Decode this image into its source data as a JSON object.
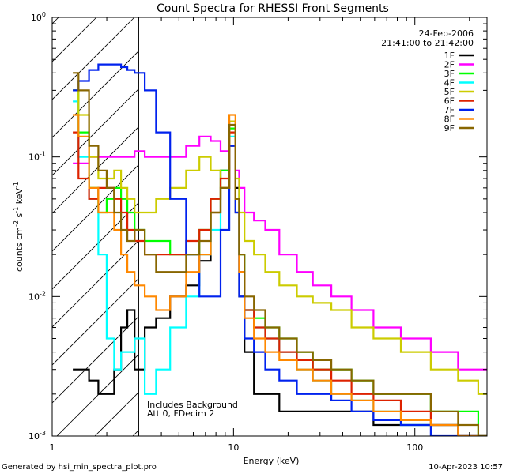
{
  "chart_data": {
    "type": "line",
    "title": "Count Spectra for RHESSI Front Segments",
    "xlabel": "Energy (keV)",
    "ylabel": "counts cm",
    "ylabel_parts": [
      "counts cm",
      "-2",
      " s",
      "-1",
      " keV",
      "-1"
    ],
    "x_scale": "log",
    "y_scale": "log",
    "xlim": [
      1,
      250
    ],
    "ylim": [
      0.001,
      1
    ],
    "x_ticks": [
      {
        "value": 1,
        "label": "1"
      },
      {
        "value": 10,
        "label": "10"
      },
      {
        "value": 100,
        "label": "100"
      }
    ],
    "y_ticks": [
      {
        "value": 1,
        "base": "10",
        "exp": "0"
      },
      {
        "value": 0.1,
        "base": "10",
        "exp": "-1"
      },
      {
        "value": 0.01,
        "base": "10",
        "exp": "-2"
      },
      {
        "value": 0.001,
        "base": "10",
        "exp": "-3"
      }
    ],
    "shaded_region": {
      "x_start": 1,
      "x_end": 3,
      "style": "diagonal-hatch"
    },
    "date": "24-Feb-2006",
    "time_range": "21:41:00 to 21:42:00",
    "annotations": [
      "Includes Background",
      "Att 0, FDecim 2"
    ],
    "footer_left": "Generated by hsi_min_spectra_plot.pro",
    "footer_right": "10-Apr-2023 10:57",
    "series": [
      {
        "name": "1F",
        "color": "#000000",
        "x": [
          1.3,
          1.5,
          1.7,
          1.9,
          2.1,
          2.3,
          2.5,
          2.7,
          3,
          3.5,
          4,
          5,
          6,
          7,
          8,
          9,
          10,
          10.5,
          11,
          12,
          14,
          16,
          20,
          25,
          30,
          40,
          50,
          70,
          100,
          150,
          200,
          250
        ],
        "values": [
          0.003,
          0.003,
          0.0025,
          0.002,
          0.002,
          0.003,
          0.006,
          0.008,
          0.003,
          0.006,
          0.007,
          0.01,
          0.012,
          0.018,
          0.04,
          0.08,
          0.12,
          0.06,
          0.01,
          0.004,
          0.002,
          0.002,
          0.0015,
          0.0015,
          0.0015,
          0.0015,
          0.0015,
          0.0012,
          0.0012,
          0.0012,
          0.001,
          0.001
        ]
      },
      {
        "name": "2F",
        "color": "#ff00ff",
        "x": [
          1.3,
          1.5,
          1.7,
          1.9,
          2.1,
          2.3,
          2.5,
          2.7,
          3,
          3.5,
          4,
          5,
          6,
          7,
          8,
          9,
          10,
          10.5,
          11,
          12,
          14,
          16,
          20,
          25,
          30,
          40,
          50,
          70,
          100,
          150,
          200,
          250
        ],
        "values": [
          0.09,
          0.09,
          0.1,
          0.1,
          0.1,
          0.1,
          0.1,
          0.1,
          0.11,
          0.1,
          0.1,
          0.1,
          0.12,
          0.14,
          0.13,
          0.11,
          0.18,
          0.08,
          0.06,
          0.04,
          0.035,
          0.03,
          0.02,
          0.015,
          0.012,
          0.01,
          0.008,
          0.006,
          0.005,
          0.004,
          0.003,
          0.003
        ]
      },
      {
        "name": "3F",
        "color": "#00ff00",
        "x": [
          1.3,
          1.5,
          1.7,
          1.9,
          2.1,
          2.3,
          2.5,
          2.7,
          3,
          3.5,
          4,
          5,
          6,
          7,
          8,
          9,
          10,
          10.5,
          11,
          12,
          14,
          16,
          20,
          25,
          30,
          40,
          50,
          70,
          100,
          150,
          200,
          250
        ],
        "values": [
          0.3,
          0.15,
          0.06,
          0.04,
          0.05,
          0.06,
          0.05,
          0.04,
          0.03,
          0.025,
          0.025,
          0.02,
          0.02,
          0.03,
          0.05,
          0.08,
          0.16,
          0.05,
          0.02,
          0.008,
          0.007,
          0.006,
          0.005,
          0.004,
          0.003,
          0.003,
          0.0025,
          0.002,
          0.002,
          0.0015,
          0.0015,
          0.001
        ]
      },
      {
        "name": "4F",
        "color": "#00ffff",
        "x": [
          1.3,
          1.5,
          1.7,
          1.9,
          2.1,
          2.3,
          2.5,
          2.7,
          3,
          3.5,
          4,
          5,
          6,
          7,
          8,
          9,
          10,
          10.5,
          11,
          12,
          14,
          16,
          20,
          25,
          30,
          40,
          50,
          70,
          100,
          150,
          200,
          250
        ],
        "values": [
          0.25,
          0.1,
          0.05,
          0.02,
          0.005,
          0.003,
          0.004,
          0.004,
          0.005,
          0.002,
          0.003,
          0.006,
          0.01,
          0.02,
          0.03,
          0.06,
          0.14,
          0.04,
          0.015,
          0.008,
          0.006,
          0.005,
          0.004,
          0.003,
          0.0025,
          0.002,
          0.0018,
          0.0015,
          0.0012,
          0.0012,
          0.001,
          0.001
        ]
      },
      {
        "name": "5F",
        "color": "#cccc00",
        "x": [
          1.3,
          1.5,
          1.7,
          1.9,
          2.1,
          2.3,
          2.5,
          2.7,
          3,
          3.5,
          4,
          5,
          6,
          7,
          8,
          9,
          10,
          10.5,
          11,
          12,
          14,
          16,
          20,
          25,
          30,
          40,
          50,
          70,
          100,
          150,
          200,
          250
        ],
        "values": [
          0.3,
          0.2,
          0.1,
          0.07,
          0.07,
          0.08,
          0.06,
          0.05,
          0.04,
          0.04,
          0.05,
          0.06,
          0.08,
          0.1,
          0.08,
          0.06,
          0.18,
          0.07,
          0.04,
          0.025,
          0.02,
          0.015,
          0.012,
          0.01,
          0.009,
          0.008,
          0.006,
          0.005,
          0.004,
          0.003,
          0.0025,
          0.002
        ]
      },
      {
        "name": "6F",
        "color": "#dd2200",
        "x": [
          1.3,
          1.5,
          1.7,
          1.9,
          2.1,
          2.3,
          2.5,
          2.7,
          3,
          3.5,
          4,
          5,
          6,
          7,
          8,
          9,
          10,
          10.5,
          11,
          12,
          14,
          16,
          20,
          25,
          30,
          40,
          50,
          70,
          100,
          150,
          200,
          250
        ],
        "values": [
          0.15,
          0.07,
          0.05,
          0.06,
          0.06,
          0.05,
          0.04,
          0.03,
          0.025,
          0.02,
          0.02,
          0.02,
          0.025,
          0.03,
          0.05,
          0.07,
          0.15,
          0.04,
          0.015,
          0.008,
          0.006,
          0.005,
          0.004,
          0.0035,
          0.003,
          0.0025,
          0.002,
          0.0018,
          0.0015,
          0.0012,
          0.001,
          0.001
        ]
      },
      {
        "name": "7F",
        "color": "#0022ee",
        "x": [
          1.3,
          1.5,
          1.7,
          1.9,
          2.1,
          2.3,
          2.5,
          2.7,
          3,
          3.5,
          4,
          5,
          6,
          7,
          8,
          9,
          10,
          10.5,
          11,
          12,
          14,
          16,
          20,
          25,
          30,
          40,
          50,
          70,
          100,
          150,
          200,
          250
        ],
        "values": [
          0.3,
          0.35,
          0.42,
          0.46,
          0.46,
          0.46,
          0.44,
          0.42,
          0.4,
          0.3,
          0.15,
          0.05,
          0.02,
          0.01,
          0.01,
          0.03,
          0.12,
          0.04,
          0.01,
          0.005,
          0.004,
          0.003,
          0.0025,
          0.002,
          0.002,
          0.0018,
          0.0015,
          0.0013,
          0.0012,
          0.001,
          0.001,
          0.001
        ]
      },
      {
        "name": "8F",
        "color": "#ff8800",
        "x": [
          1.3,
          1.5,
          1.7,
          1.9,
          2.1,
          2.3,
          2.5,
          2.7,
          3,
          3.5,
          4,
          5,
          6,
          7,
          8,
          9,
          10,
          10.5,
          11,
          12,
          14,
          16,
          20,
          25,
          30,
          40,
          50,
          70,
          100,
          150,
          200,
          250
        ],
        "values": [
          0.2,
          0.14,
          0.06,
          0.04,
          0.04,
          0.03,
          0.02,
          0.015,
          0.012,
          0.01,
          0.008,
          0.01,
          0.015,
          0.02,
          0.04,
          0.06,
          0.2,
          0.05,
          0.015,
          0.007,
          0.005,
          0.004,
          0.0035,
          0.003,
          0.0025,
          0.002,
          0.0018,
          0.0015,
          0.0013,
          0.0012,
          0.001,
          0.001
        ]
      },
      {
        "name": "9F",
        "color": "#886600",
        "x": [
          1.3,
          1.5,
          1.7,
          1.9,
          2.1,
          2.3,
          2.5,
          2.7,
          3,
          3.5,
          4,
          5,
          6,
          7,
          8,
          9,
          10,
          10.5,
          11,
          12,
          14,
          16,
          20,
          25,
          30,
          40,
          50,
          70,
          100,
          150,
          200,
          250
        ],
        "values": [
          0.4,
          0.3,
          0.12,
          0.08,
          0.06,
          0.04,
          0.03,
          0.025,
          0.03,
          0.02,
          0.015,
          0.015,
          0.02,
          0.025,
          0.04,
          0.06,
          0.17,
          0.05,
          0.02,
          0.01,
          0.008,
          0.006,
          0.005,
          0.004,
          0.0035,
          0.003,
          0.0025,
          0.002,
          0.002,
          0.0015,
          0.0012,
          0.001
        ]
      }
    ]
  }
}
